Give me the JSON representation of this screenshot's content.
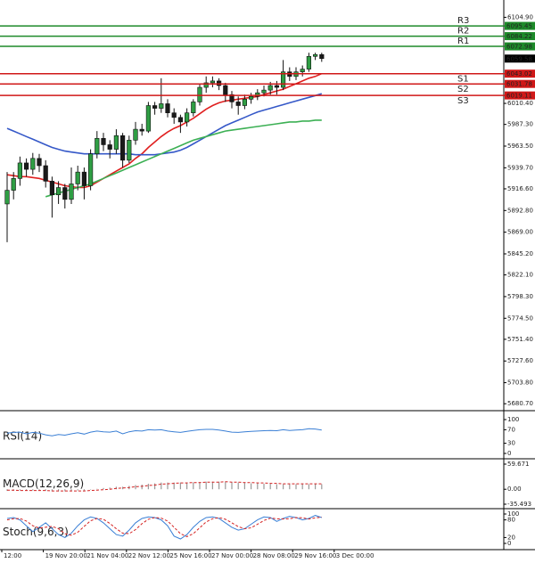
{
  "chart_data": [
    {
      "type": "candlestick",
      "x_labels": [
        "12:00",
        "19 Nov 20:00",
        "21 Nov 04:00",
        "22 Nov 12:00",
        "25 Nov 16:00",
        "27 Nov 00:00",
        "28 Nov 08:00",
        "29 Nov 16:00",
        "3 Dec 00:00"
      ],
      "ylim": [
        5676,
        6119
      ],
      "yticks": [
        {
          "value": 6104.9,
          "label": "6104.90"
        },
        {
          "value": 6010.4,
          "label": "6010.40"
        },
        {
          "value": 5987.3,
          "label": "5987.30"
        },
        {
          "value": 5963.5,
          "label": "5963.50"
        },
        {
          "value": 5939.7,
          "label": "5939.70"
        },
        {
          "value": 5916.6,
          "label": "5916.60"
        },
        {
          "value": 5892.8,
          "label": "5892.80"
        },
        {
          "value": 5869,
          "label": "5869.00"
        },
        {
          "value": 5845.2,
          "label": "5845.20"
        },
        {
          "value": 5822.1,
          "label": "5822.10"
        },
        {
          "value": 5798.3,
          "label": "5798.30"
        },
        {
          "value": 5774.5,
          "label": "5774.50"
        },
        {
          "value": 5751.4,
          "label": "5751.40"
        },
        {
          "value": 5727.6,
          "label": "5727.60"
        },
        {
          "value": 5703.8,
          "label": "5703.80"
        },
        {
          "value": 5680.7,
          "label": "5680.70"
        }
      ],
      "up_color": "#2f9e44",
      "down_color": "#1a1a1a",
      "open": [
        5900,
        5915,
        5928,
        5945,
        5938,
        5950,
        5942,
        5925,
        5910,
        5918,
        5905,
        5922,
        5935,
        5920,
        5955,
        5972,
        5965,
        5960,
        5975,
        5948,
        5970,
        5982,
        5980,
        6008,
        6005,
        6010,
        6000,
        5995,
        5990,
        6000,
        6012,
        6028,
        6033,
        6035,
        6030,
        6020,
        6012,
        6008,
        6015,
        6018,
        6022,
        6025,
        6030,
        6028,
        6045,
        6040,
        6045,
        6048,
        6062,
        6064
      ],
      "high": [
        5935,
        5935,
        5952,
        5950,
        5956,
        5955,
        5948,
        5930,
        5925,
        5922,
        5940,
        5942,
        5940,
        5960,
        5980,
        5978,
        5970,
        5982,
        5978,
        5975,
        5990,
        5988,
        6012,
        6012,
        6038,
        6015,
        6005,
        5998,
        6005,
        6015,
        6032,
        6040,
        6040,
        6038,
        6033,
        6024,
        6018,
        6020,
        6022,
        6026,
        6030,
        6034,
        6035,
        6058,
        6050,
        6050,
        6052,
        6066,
        6066,
        6066
      ],
      "low": [
        5858,
        5905,
        5920,
        5930,
        5932,
        5935,
        5918,
        5885,
        5900,
        5895,
        5900,
        5915,
        5905,
        5915,
        5950,
        5958,
        5950,
        5955,
        5940,
        5945,
        5965,
        5975,
        5978,
        5998,
        6000,
        5995,
        5988,
        5978,
        5985,
        5996,
        6008,
        6022,
        6028,
        6025,
        6012,
        6005,
        5998,
        6004,
        6010,
        6014,
        6018,
        6020,
        6020,
        6025,
        6035,
        6036,
        6040,
        6045,
        6058,
        6056
      ],
      "close": [
        5915,
        5928,
        5945,
        5938,
        5950,
        5942,
        5925,
        5910,
        5918,
        5905,
        5922,
        5935,
        5920,
        5955,
        5972,
        5965,
        5960,
        5975,
        5948,
        5970,
        5982,
        5980,
        6008,
        6005,
        6010,
        6000,
        5995,
        5990,
        6000,
        6012,
        6028,
        6033,
        6035,
        6030,
        6020,
        6012,
        6008,
        6015,
        6018,
        6022,
        6025,
        6030,
        6028,
        6045,
        6040,
        6045,
        6048,
        6062,
        6064,
        6059.58
      ],
      "lines": [
        {
          "color": "#e02020",
          "values": [
            5932,
            5931,
            5930,
            5930,
            5929,
            5928,
            5926,
            5924,
            5922,
            5920,
            5919,
            5918,
            5918,
            5920,
            5924,
            5928,
            5932,
            5936,
            5940,
            5944,
            5950,
            5955,
            5962,
            5968,
            5974,
            5979,
            5983,
            5986,
            5990,
            5994,
            5999,
            6004,
            6008,
            6011,
            6013,
            6014,
            6015,
            6016,
            6017,
            6018,
            6020,
            6022,
            6024,
            6026,
            6029,
            6032,
            6035,
            6038,
            6040,
            6043
          ]
        },
        {
          "color": "#3558c8",
          "values": [
            5983,
            5980,
            5977,
            5974,
            5971,
            5968,
            5965,
            5962,
            5960,
            5958,
            5957,
            5956,
            5955,
            5955,
            5955,
            5955,
            5955,
            5955,
            5955,
            5955,
            5954,
            5954,
            5954,
            5954,
            5955,
            5956,
            5957,
            5959,
            5962,
            5966,
            5970,
            5974,
            5978,
            5982,
            5986,
            5989,
            5992,
            5995,
            5998,
            6001,
            6003,
            6005,
            6007,
            6009,
            6011,
            6013,
            6015,
            6017,
            6019,
            6021
          ]
        },
        {
          "color": "#3cb054",
          "values": [
            null,
            null,
            null,
            null,
            null,
            null,
            5908,
            5910,
            5912,
            5914,
            5916,
            5918,
            5920,
            5922,
            5925,
            5928,
            5931,
            5934,
            5937,
            5940,
            5943,
            5946,
            5949,
            5952,
            5955,
            5958,
            5961,
            5964,
            5967,
            5970,
            5972,
            5974,
            5976,
            5978,
            5980,
            5981,
            5982,
            5983,
            5984,
            5985,
            5986,
            5987,
            5988,
            5989,
            5990,
            5990,
            5991,
            5991,
            5992,
            5992
          ]
        }
      ],
      "levels": [
        {
          "name": "R3",
          "value": 6095.45,
          "color": "#1e8a2a"
        },
        {
          "name": "R2",
          "value": 6084.22,
          "color": "#1e8a2a"
        },
        {
          "name": "R1",
          "value": 6072.98,
          "color": "#1e8a2a"
        },
        {
          "name": "S1",
          "value": 6043.02,
          "color": "#d01818"
        },
        {
          "name": "S2",
          "value": 6031.78,
          "color": "#d01818"
        },
        {
          "name": "S3",
          "value": 6019.11,
          "color": "#d01818"
        }
      ],
      "last_price": 6059.58
    },
    {
      "type": "line",
      "title": "RSI(14)",
      "ylim": [
        0,
        100
      ],
      "yticks": [
        100,
        70,
        30,
        0
      ],
      "series": [
        {
          "color": "#3a7fd5",
          "style": "solid",
          "values": [
            60,
            62,
            63,
            58,
            62,
            60,
            55,
            52,
            56,
            54,
            58,
            61,
            57,
            63,
            66,
            64,
            63,
            66,
            58,
            64,
            67,
            66,
            70,
            69,
            70,
            66,
            64,
            62,
            65,
            68,
            70,
            71,
            71,
            69,
            66,
            63,
            62,
            64,
            65,
            66,
            67,
            68,
            67,
            70,
            68,
            69,
            70,
            73,
            72,
            69
          ]
        }
      ]
    },
    {
      "type": "macd",
      "title": "MACD(12,26,9)",
      "ylim": [
        -35.493,
        59.671
      ],
      "yticks": [
        59.671,
        {
          "value": 0,
          "label": "0.00"
        },
        -35.493
      ],
      "histogram": {
        "color": "#9a9a9a",
        "values": [
          -4,
          -4,
          -3,
          -3,
          -3,
          -3,
          -4,
          -5,
          -5,
          -5,
          -4,
          -3,
          -3,
          -1,
          1,
          3,
          4,
          6,
          6,
          8,
          10,
          11,
          13,
          14,
          16,
          16,
          16,
          16,
          16,
          16,
          17,
          18,
          18,
          18,
          18,
          17,
          16,
          15,
          14,
          14,
          13,
          13,
          12,
          12,
          12,
          12,
          12,
          12,
          13,
          12
        ]
      },
      "signal": {
        "color": "#d42020",
        "style": "dashed",
        "values": [
          -2,
          -2,
          -3,
          -3,
          -3,
          -3,
          -3,
          -4,
          -4,
          -4,
          -4,
          -4,
          -4,
          -3,
          -2,
          -1,
          0,
          2,
          3,
          4,
          6,
          7,
          9,
          10,
          12,
          13,
          14,
          15,
          15,
          16,
          16,
          17,
          17,
          17,
          18,
          17,
          17,
          16,
          16,
          15,
          15,
          14,
          14,
          13,
          13,
          13,
          13,
          13,
          13,
          13
        ]
      }
    },
    {
      "type": "line",
      "title": "Stoch(9,6,3)",
      "ylim": [
        0,
        100
      ],
      "yticks": [
        100,
        80,
        20,
        0
      ],
      "series": [
        {
          "color": "#3a7fd5",
          "style": "solid",
          "values": [
            85,
            88,
            80,
            60,
            40,
            55,
            70,
            50,
            30,
            20,
            35,
            60,
            80,
            90,
            85,
            70,
            50,
            30,
            25,
            45,
            70,
            85,
            90,
            88,
            80,
            60,
            25,
            15,
            30,
            55,
            75,
            88,
            90,
            85,
            70,
            55,
            45,
            50,
            65,
            80,
            90,
            88,
            75,
            85,
            92,
            88,
            80,
            85,
            95,
            88
          ]
        },
        {
          "color": "#d42020",
          "style": "dashed",
          "values": [
            80,
            84,
            85,
            76,
            60,
            52,
            55,
            58,
            50,
            33,
            28,
            38,
            58,
            77,
            85,
            82,
            68,
            50,
            35,
            33,
            47,
            67,
            82,
            88,
            86,
            76,
            55,
            33,
            23,
            33,
            53,
            73,
            84,
            88,
            82,
            70,
            57,
            50,
            53,
            65,
            78,
            86,
            84,
            83,
            84,
            88,
            87,
            83,
            87,
            89
          ]
        }
      ]
    }
  ]
}
